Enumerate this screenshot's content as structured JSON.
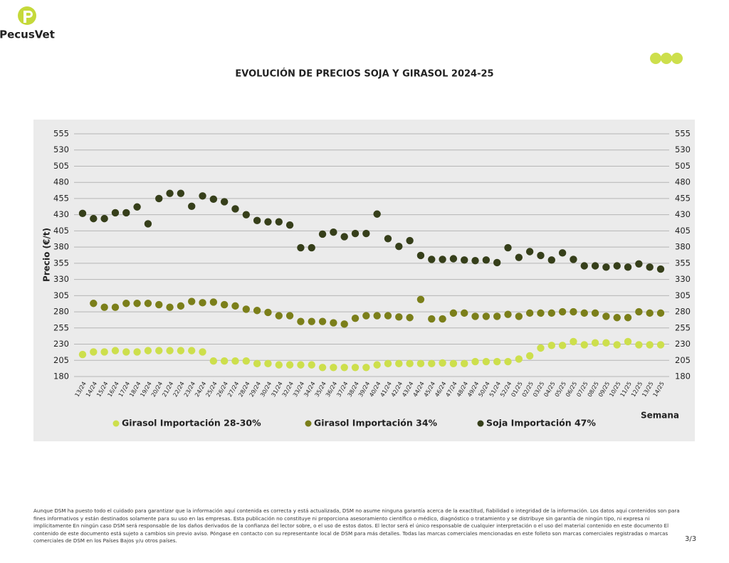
{
  "header": {
    "brand": "PecusVet"
  },
  "chart_data": {
    "type": "scatter",
    "title": "EVOLUCIÓN DE PRECIOS SOJA Y GIRASOL 2024-25",
    "y_label": "Precio (€/t)",
    "x_label": "Semana",
    "categories": [
      "13/24",
      "14/24",
      "15/24",
      "16/24",
      "17/24",
      "18/24",
      "19/24",
      "20/24",
      "21/24",
      "22/24",
      "23/24",
      "24/24",
      "25/24",
      "26/24",
      "27/24",
      "28/24",
      "29/24",
      "30/24",
      "31/24",
      "32/24",
      "33/24",
      "34/24",
      "35/24",
      "36/24",
      "37/24",
      "38/24",
      "39/24",
      "40/24",
      "41/24",
      "42/24",
      "43/24",
      "44/24",
      "45/24",
      "46/24",
      "47/24",
      "48/24",
      "49/24",
      "50/24",
      "51/24",
      "52/24",
      "01/25",
      "02/25",
      "03/25",
      "04/25",
      "05/25",
      "06/25",
      "07/25",
      "08/25",
      "09/25",
      "10/25",
      "11/25",
      "12/25",
      "13/25",
      "14/25"
    ],
    "series": [
      {
        "name": "Girasol Importación 28-30%",
        "color": "#cddf4c",
        "values": [
          214,
          218,
          218,
          220,
          218,
          218,
          220,
          220,
          220,
          220,
          220,
          218,
          204,
          204,
          204,
          204,
          200,
          200,
          198,
          198,
          198,
          198,
          194,
          194,
          194,
          194,
          194,
          198,
          200,
          200,
          200,
          200,
          200,
          201,
          200,
          200,
          203,
          203,
          203,
          203,
          207,
          212,
          224,
          228,
          228,
          234,
          229,
          232,
          232,
          229,
          234,
          229,
          229,
          229
        ]
      },
      {
        "name": "Girasol Importación 34%",
        "color": "#7b7f1a",
        "values": [
          null,
          293,
          287,
          287,
          293,
          293,
          293,
          291,
          287,
          289,
          296,
          294,
          295,
          291,
          289,
          284,
          282,
          279,
          274,
          274,
          265,
          265,
          265,
          263,
          261,
          270,
          274,
          274,
          274,
          272,
          271,
          299,
          269,
          269,
          278,
          278,
          273,
          273,
          273,
          276,
          273,
          278,
          278,
          278,
          280,
          280,
          278,
          278,
          273,
          271,
          271,
          280,
          278,
          278
        ]
      },
      {
        "name": "Soja Importación 47%",
        "color": "#363f1a",
        "values": [
          432,
          424,
          424,
          433,
          433,
          442,
          416,
          455,
          463,
          463,
          443,
          459,
          454,
          450,
          439,
          430,
          421,
          419,
          419,
          414,
          379,
          379,
          400,
          403,
          396,
          401,
          401,
          431,
          393,
          381,
          390,
          367,
          361,
          361,
          362,
          360,
          359,
          360,
          356,
          379,
          364,
          373,
          367,
          360,
          371,
          361,
          351,
          351,
          349,
          351,
          349,
          354,
          349,
          346
        ]
      }
    ],
    "ylim": [
      180,
      555
    ],
    "yticks": [
      180,
      205,
      230,
      255,
      280,
      305,
      330,
      355,
      380,
      405,
      430,
      455,
      480,
      505,
      530,
      555
    ],
    "grid": true,
    "legend": "bottom"
  },
  "footer": {
    "disclaimer": "Aunque DSM ha puesto todo el cuidado para garantizar que la información aquí contenida es correcta y está actualizada, DSM no asume ninguna garantía acerca de la exactitud, fiabilidad o integridad de la información. Los datos aquí contenidos son para fines informativos y están destinados solamente para su uso en las empresas. Esta publicación no constituye ni proporciona asesoramiento científico o médico, diagnóstico o tratamiento y se distribuye sin garantía de ningún tipo, ni expresa ni implícitamente En ningún caso DSM será responsable de los daños derivados de la confianza del lector sobre, o el uso de estos datos. El lector será el único responsable de cualquier interpretación o el uso del material contenido en este documento El contenido de este documento está sujeto a cambios sin previo aviso. Póngase en contacto con su representante local de DSM para más detalles. Todas las marcas comerciales mencionadas en este folleto son marcas comerciales registradas o marcas comerciales de DSM en los Países Bajos y/u otros países.",
    "page": "3/3"
  }
}
